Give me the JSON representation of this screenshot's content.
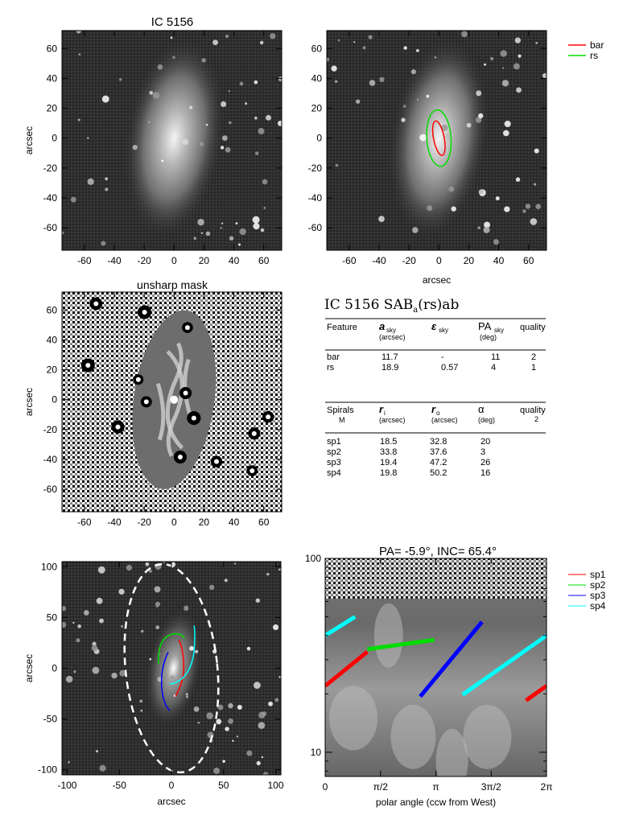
{
  "panels": {
    "p1": {
      "title": "IC 5156",
      "ylabel": "arcsec",
      "xlabel": "",
      "xticks": [
        -60,
        -40,
        -20,
        0,
        20,
        40,
        60
      ],
      "yticks": [
        60,
        40,
        20,
        0,
        -20,
        -40,
        -60
      ],
      "range": [
        -75,
        72
      ]
    },
    "p2": {
      "title": "",
      "ylabel": "",
      "xlabel": "arcsec",
      "xticks": [
        -60,
        -40,
        -20,
        0,
        20,
        40,
        60
      ],
      "yticks": [
        60,
        40,
        20,
        0,
        -20,
        -40,
        -60
      ],
      "range": [
        -75,
        72
      ]
    },
    "p3": {
      "title": "unsharp mask",
      "ylabel": "arcsec",
      "xlabel": "",
      "xticks": [
        -60,
        -40,
        -20,
        0,
        20,
        40,
        60
      ],
      "yticks": [
        60,
        40,
        20,
        0,
        -20,
        -40,
        -60
      ],
      "range": [
        -75,
        72
      ]
    },
    "p5": {
      "title": "",
      "ylabel": "arcsec",
      "xlabel": "arcsec",
      "xticks": [
        -100,
        -50,
        0,
        50,
        100
      ],
      "yticks": [
        100,
        50,
        0,
        -50,
        -100
      ],
      "range": [
        -105,
        105
      ]
    },
    "p6": {
      "title": "PA=  -5.9°, INC=  65.4°",
      "xlabel": "polar angle (ccw from West)",
      "xticks": [
        "0",
        "π/2",
        "π",
        "3π/2",
        "2π"
      ],
      "yticks": [
        "100",
        "10"
      ]
    }
  },
  "legend_top": [
    {
      "label": "bar",
      "color": "#ff0000"
    },
    {
      "label": "rs",
      "color": "#00dd00"
    }
  ],
  "legend_bottom": [
    {
      "label": "sp1",
      "color": "#ff0000"
    },
    {
      "label": "sp2",
      "color": "#00dd00"
    },
    {
      "label": "sp3",
      "color": "#0000ff"
    },
    {
      "label": "sp4",
      "color": "#00ffff"
    }
  ],
  "table": {
    "title": "IC 5156  SAB",
    "title_sub": "a",
    "title_tail": "(rs)ab",
    "features_header": [
      "Feature",
      "a",
      "sky",
      "(arcsec)",
      "ε",
      "sky",
      "PA",
      "sky",
      "(deg)",
      "quality"
    ],
    "features": [
      [
        "bar",
        "11.7",
        "-",
        "11",
        "2"
      ],
      [
        "rs",
        "18.9",
        "0.57",
        "4",
        "1"
      ]
    ],
    "spirals_header": [
      "Spirals",
      "M",
      "r",
      "i",
      "(arcsec)",
      "r",
      "o",
      "(arcsec)",
      "α",
      "(deg)",
      "quality",
      "2"
    ],
    "spirals": [
      [
        "sp1",
        "18.5",
        "32.8",
        "20"
      ],
      [
        "sp2",
        "33.8",
        "37.6",
        "3"
      ],
      [
        "sp3",
        "19.4",
        "47.2",
        "26"
      ],
      [
        "sp4",
        "19.8",
        "50.2",
        "16"
      ]
    ]
  },
  "chart_data": [
    {
      "type": "image",
      "title": "IC 5156",
      "ylabel": "arcsec",
      "xlim": [
        -75,
        72
      ],
      "ylim": [
        -75,
        72
      ]
    },
    {
      "type": "image",
      "xlabel": "arcsec",
      "xlim": [
        -75,
        72
      ],
      "ylim": [
        -75,
        72
      ],
      "overlays": [
        {
          "name": "bar",
          "semi_major_arcsec": 11.7,
          "pa_deg": 11,
          "color": "#ff0000"
        },
        {
          "name": "rs",
          "semi_major_arcsec": 18.9,
          "ellipticity": 0.57,
          "pa_deg": 4,
          "color": "#00dd00"
        }
      ]
    },
    {
      "type": "image",
      "title": "unsharp mask",
      "ylabel": "arcsec",
      "xlim": [
        -75,
        72
      ],
      "ylim": [
        -75,
        72
      ]
    },
    {
      "type": "image",
      "ylabel": "arcsec",
      "xlabel": "arcsec",
      "xlim": [
        -105,
        105
      ],
      "ylim": [
        -105,
        105
      ]
    },
    {
      "type": "line",
      "title": "PA=  -5.9°, INC=  65.4°",
      "xlabel": "polar angle (ccw from West)",
      "xlim": [
        0,
        6.2832
      ],
      "ylim": [
        7.5,
        100
      ],
      "yscale": "log",
      "series": [
        {
          "name": "sp1",
          "color": "#ff0000",
          "segments": [
            [
              [
                0,
                22
              ],
              [
                1.2,
                33
              ]
            ],
            [
              [
                5.7,
                18.5
              ],
              [
                6.2832,
                22
              ]
            ]
          ]
        },
        {
          "name": "sp2",
          "color": "#00dd00",
          "segments": [
            [
              [
                1.2,
                34
              ],
              [
                3.1,
                38
              ]
            ]
          ]
        },
        {
          "name": "sp3",
          "color": "#0000ff",
          "segments": [
            [
              [
                2.7,
                19.4
              ],
              [
                4.45,
                47
              ]
            ]
          ]
        },
        {
          "name": "sp4",
          "color": "#00ffff",
          "segments": [
            [
              [
                0,
                40
              ],
              [
                0.85,
                50
              ]
            ],
            [
              [
                3.9,
                19.8
              ],
              [
                6.2832,
                40
              ]
            ]
          ]
        }
      ]
    }
  ]
}
